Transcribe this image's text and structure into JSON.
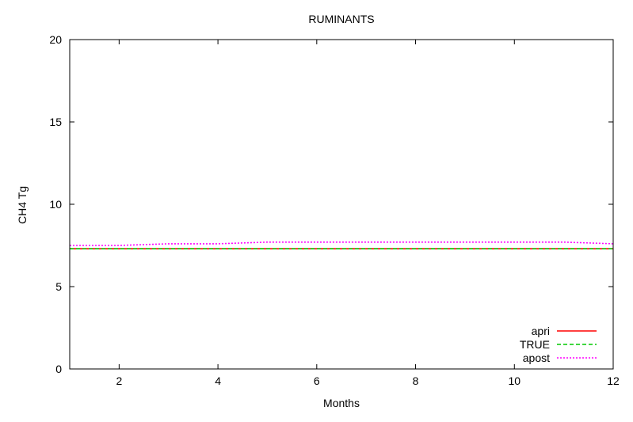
{
  "chart_data": {
    "type": "line",
    "title": "RUMINANTS",
    "xlabel": "Months",
    "ylabel": "CH4 Tg",
    "xlim": [
      1,
      12
    ],
    "ylim": [
      0,
      20
    ],
    "xticks": [
      2,
      4,
      6,
      8,
      10,
      12
    ],
    "yticks": [
      0,
      5,
      10,
      15,
      20
    ],
    "grid": false,
    "legend_position": "bottom-right",
    "x": [
      1,
      2,
      3,
      4,
      5,
      6,
      7,
      8,
      9,
      10,
      11,
      12
    ],
    "series": [
      {
        "name": "apri",
        "color": "#ff0000",
        "dash": "solid",
        "values": [
          7.3,
          7.3,
          7.3,
          7.3,
          7.3,
          7.3,
          7.3,
          7.3,
          7.3,
          7.3,
          7.3,
          7.3
        ]
      },
      {
        "name": "TRUE",
        "color": "#00c800",
        "dash": "dashed",
        "values": [
          7.3,
          7.3,
          7.3,
          7.3,
          7.3,
          7.3,
          7.3,
          7.3,
          7.3,
          7.3,
          7.3,
          7.3
        ]
      },
      {
        "name": "apost",
        "color": "#ff00ff",
        "dash": "dotted",
        "values": [
          7.5,
          7.5,
          7.6,
          7.6,
          7.7,
          7.7,
          7.7,
          7.7,
          7.7,
          7.7,
          7.7,
          7.6
        ]
      }
    ]
  }
}
